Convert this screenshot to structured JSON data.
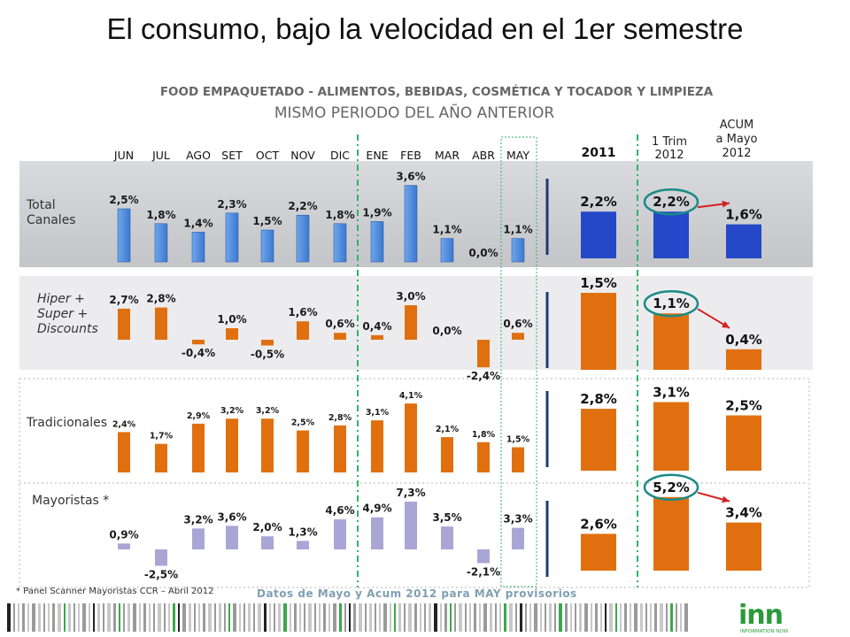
{
  "title": "El consumo, bajo la velocidad en el 1er semestre",
  "subtitle_line1": "FOOD EMPAQUETADO - ALIMENTOS, BEBIDAS, COSMÉTICA Y TOCADOR Y LIMPIEZA",
  "subtitle_line2": "MISMO PERIODO DEL AÑO ANTERIOR",
  "footnote": "* Panel  Scanner Mayoristas CCR – Abril 2012",
  "provisional_note": "Datos de Mayo  y Acum 2012 para MAY provisorios",
  "logo_text": "inn",
  "logo_sub": "INFORMATION NOW",
  "colors": {
    "blue": "#4a86d8",
    "orange": "#e0700f",
    "lavender": "#a9a6d6",
    "green": "#2fb36a",
    "teal_circle": "#1a8a86",
    "red_arrow": "#d42020",
    "band": "#cfcfd3"
  },
  "chart_data": {
    "type": "bar",
    "months": [
      "JUN",
      "JUL",
      "AGO",
      "SET",
      "OCT",
      "NOV",
      "DIC",
      "ENE",
      "FEB",
      "MAR",
      "ABR",
      "MAY"
    ],
    "summary_headers": [
      "2011",
      "1 Trim\n2012",
      "ACUM\na Mayo\n2012"
    ],
    "unit": "%",
    "series": [
      {
        "name": "Total\nCanales",
        "values": [
          2.5,
          1.8,
          1.4,
          2.3,
          1.5,
          2.2,
          1.8,
          1.9,
          3.6,
          1.1,
          0.0,
          1.1
        ],
        "labels": [
          "2,5%",
          "1,8%",
          "1,4%",
          "2,3%",
          "1,5%",
          "2,2%",
          "1,8%",
          "1,9%",
          "3,6%",
          "1,1%",
          "0,0%",
          "1,1%"
        ],
        "summary": [
          2.2,
          2.2,
          1.6
        ],
        "summary_labels": [
          "2,2%",
          "2,2%",
          "1,6%"
        ]
      },
      {
        "name": "Hiper +\nSuper +\nDiscounts",
        "values": [
          2.7,
          2.8,
          -0.4,
          1.0,
          -0.5,
          1.6,
          0.6,
          0.4,
          3.0,
          0.0,
          -2.4,
          0.6
        ],
        "labels": [
          "2,7%",
          "2,8%",
          "-0,4%",
          "1,0%",
          "-0,5%",
          "1,6%",
          "0,6%",
          "0,4%",
          "3,0%",
          "0,0%",
          "-2,4%",
          "0,6%"
        ],
        "summary": [
          1.5,
          1.1,
          0.4
        ],
        "summary_labels": [
          "1,5%",
          "1,1%",
          "0,4%"
        ]
      },
      {
        "name": "Tradicionales",
        "values": [
          2.4,
          1.7,
          2.9,
          3.2,
          3.2,
          2.5,
          2.8,
          3.1,
          4.1,
          2.1,
          1.8,
          1.5
        ],
        "labels": [
          "2,4%",
          "1,7%",
          "2,9%",
          "3,2%",
          "3,2%",
          "2,5%",
          "2,8%",
          "3,1%",
          "4,1%",
          "2,1%",
          "1,8%",
          "1,5%"
        ],
        "summary": [
          2.8,
          3.1,
          2.5
        ],
        "summary_labels": [
          "2,8%",
          "3,1%",
          "2,5%"
        ]
      },
      {
        "name": "Mayoristas *",
        "values": [
          0.9,
          -2.5,
          3.2,
          3.6,
          2.0,
          1.3,
          4.6,
          4.9,
          7.3,
          3.5,
          -2.1,
          3.3
        ],
        "labels": [
          "0,9%",
          "-2,5%",
          "3,2%",
          "3,6%",
          "2,0%",
          "1,3%",
          "4,6%",
          "4,9%",
          "7,3%",
          "3,5%",
          "-2,1%",
          "3,3%"
        ],
        "summary": [
          2.6,
          5.2,
          3.4
        ],
        "summary_labels": [
          "2,6%",
          "5,2%",
          "3,4%"
        ]
      }
    ],
    "highlighted_summary": [
      {
        "series": 0,
        "from": 1,
        "to": 2
      },
      {
        "series": 1,
        "from": 1,
        "to": 2
      },
      {
        "series": 3,
        "from": 1,
        "to": 2
      }
    ]
  }
}
